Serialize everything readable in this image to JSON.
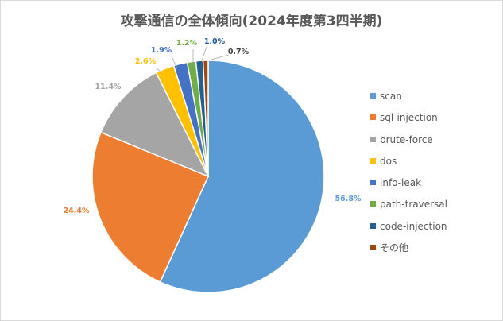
{
  "chart_data": {
    "type": "pie",
    "title": "攻撃通信の全体傾向(2024年度第3四半期)",
    "legend_position": "right",
    "slices": [
      {
        "name": "scan",
        "value": 56.8,
        "label": "56.8%",
        "color": "#5b9bd5"
      },
      {
        "name": "sql-injection",
        "value": 24.4,
        "label": "24.4%",
        "color": "#ed7d31"
      },
      {
        "name": "brute-force",
        "value": 11.4,
        "label": "11.4%",
        "color": "#a5a5a5"
      },
      {
        "name": "dos",
        "value": 2.6,
        "label": "2.6%",
        "color": "#ffc000"
      },
      {
        "name": "info-leak",
        "value": 1.9,
        "label": "1.9%",
        "color": "#4472c4"
      },
      {
        "name": "path-traversal",
        "value": 1.2,
        "label": "1.2%",
        "color": "#70ad47"
      },
      {
        "name": "code-injection",
        "value": 1.0,
        "label": "1.0%",
        "color": "#255e91"
      },
      {
        "name": "その他",
        "value": 0.7,
        "label": "0.7%",
        "color": "#9e480e"
      }
    ]
  }
}
